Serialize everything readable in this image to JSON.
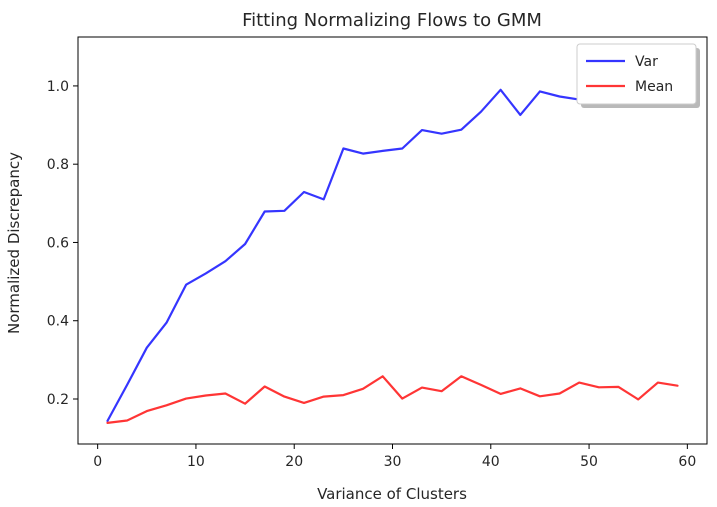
{
  "chart_data": {
    "type": "line",
    "title": "Fitting Normalizing Flows to GMM",
    "xlabel": "Variance of Clusters",
    "ylabel": "Normalized Discrepancy",
    "xlim": [
      -2,
      62
    ],
    "ylim": [
      0.085,
      1.125
    ],
    "xticks": [
      0,
      10,
      20,
      30,
      40,
      50,
      60
    ],
    "yticks": [
      0.2,
      0.4,
      0.6,
      0.8,
      1.0
    ],
    "xtick_labels": [
      "0",
      "10",
      "20",
      "30",
      "40",
      "50",
      "60"
    ],
    "ytick_labels": [
      "0.2",
      "0.4",
      "0.6",
      "0.8",
      "1.0"
    ],
    "grid": false,
    "legend": {
      "placement": "top-right",
      "shadow": true
    },
    "x": [
      1,
      3,
      5,
      7,
      9,
      11,
      13,
      15,
      17,
      19,
      21,
      23,
      25,
      27,
      29,
      31,
      33,
      35,
      37,
      39,
      41,
      43,
      45,
      47,
      49,
      51,
      53,
      55,
      57,
      59
    ],
    "series": [
      {
        "name": "Var",
        "color": "#3535ff",
        "values": [
          0.144,
          0.236,
          0.331,
          0.395,
          0.492,
          0.521,
          0.552,
          0.596,
          0.679,
          0.681,
          0.729,
          0.71,
          0.84,
          0.827,
          0.834,
          0.84,
          0.887,
          0.878,
          0.888,
          0.934,
          0.99,
          0.926,
          0.986,
          0.973,
          0.965,
          0.97,
          0.96,
          0.975,
          0.97,
          0.965
        ]
      },
      {
        "name": "Mean",
        "color": "#ff3535",
        "values": [
          0.139,
          0.145,
          0.169,
          0.184,
          0.201,
          0.209,
          0.214,
          0.188,
          0.232,
          0.206,
          0.19,
          0.206,
          0.21,
          0.226,
          0.258,
          0.201,
          0.229,
          0.22,
          0.258,
          0.236,
          0.213,
          0.227,
          0.207,
          0.214,
          0.242,
          0.23,
          0.231,
          0.199,
          0.242,
          0.234
        ]
      }
    ]
  }
}
